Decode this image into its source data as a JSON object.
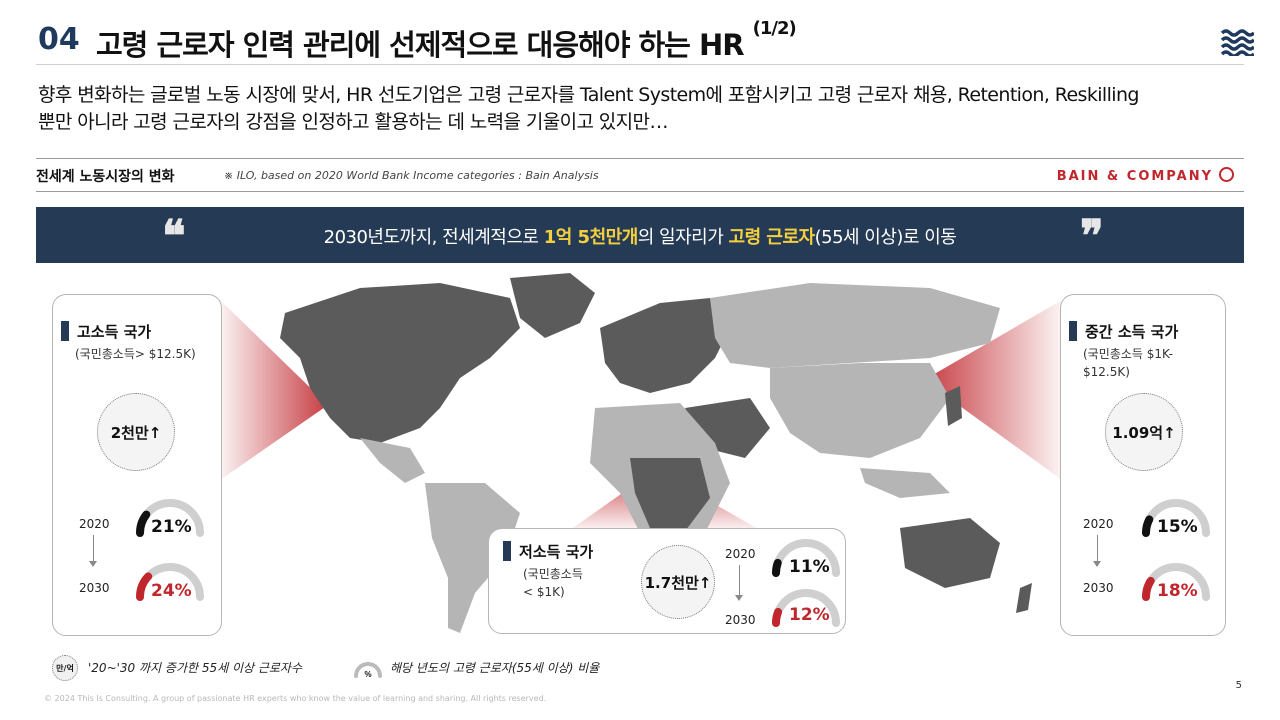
{
  "header": {
    "number": "04",
    "title": "고령 근로자 인력 관리에 선제적으로 대응해야 하는 HR",
    "title_suffix": "(1/2)"
  },
  "intro": {
    "line1": "향후 변화하는 글로벌 노동 시장에 맞서, HR 선도기업은 고령 근로자를 Talent System에 포함시키고 고령 근로자 채용, Retention, Reskilling",
    "line2": "뿐만 아니라 고령 근로자의 강점을 인정하고 활용하는 데 노력을 기울이고 있지만…"
  },
  "section": {
    "title": "전세계 노동시장의 변화",
    "source": "※ ILO, based on 2020 World Bank Income categories : Bain Analysis",
    "brand": "BAIN & COMPANY"
  },
  "banner": {
    "open_quote": "❝",
    "close_quote": "❞",
    "part1": "2030년도까지, 전세계적으로 ",
    "hl1": "1억 5천만개",
    "part2": "의 일자리가 ",
    "hl2": "고령 근로자",
    "part3": "(55세 이상)로 이동"
  },
  "cards": {
    "high": {
      "title": "고소득 국가",
      "sub1": "(국민총소득> $12.5K)",
      "bubble": "2천만↑",
      "year_from": "2020",
      "year_to": "2030",
      "pct_from": "21%",
      "pct_to": "24%",
      "share_from": 0.21,
      "share_to": 0.24
    },
    "middle": {
      "title": "중간 소득 국가",
      "sub1": "(국민총소득 $1K-",
      "sub2": "$12.5K)",
      "bubble": "1.09억↑",
      "year_from": "2020",
      "year_to": "2030",
      "pct_from": "15%",
      "pct_to": "18%",
      "share_from": 0.15,
      "share_to": 0.18
    },
    "low": {
      "title": "저소득 국가",
      "sub1": "(국민총소득",
      "sub2": "< $1K)",
      "bubble": "1.7천만↑",
      "year_from": "2020",
      "year_to": "2030",
      "pct_from": "11%",
      "pct_to": "12%",
      "share_from": 0.11,
      "share_to": 0.12
    }
  },
  "legend": {
    "circle_label": "만/억",
    "circle_text": "'20~'30 까지 증가한  55세 이상 근로자수",
    "gauge_label": "%",
    "gauge_text": "해당 년도의 고령 근로자(55세 이상) 비율"
  },
  "colors": {
    "navy": "#253a55",
    "accent_red": "#c0272d",
    "highlight_yellow": "#f4d03f",
    "map_dark": "#5b5b5b",
    "map_light": "#b5b5b5"
  },
  "footer": {
    "copyright": "© 2024 This Is Consulting. A group of passionate HR experts who know the value of learning and sharing. All rights reserved.",
    "page": "5"
  }
}
